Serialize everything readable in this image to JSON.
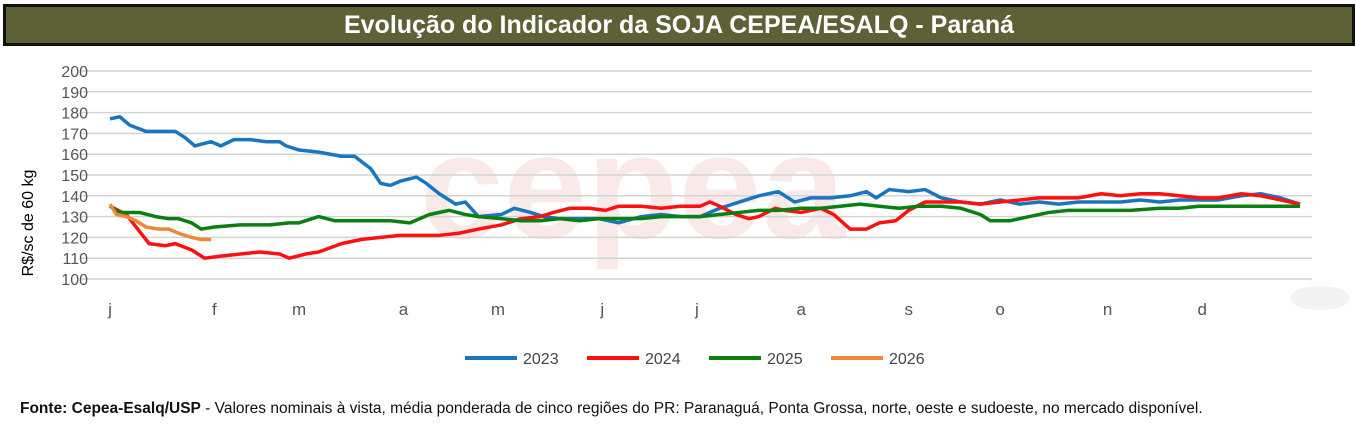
{
  "title": "Evolução do Indicador da SOJA CEPEA/ESALQ - Paraná",
  "footnote": {
    "source": "Fonte: Cepea-Esalq/USP",
    "text": " - Valores nominais à vista, média ponderada de cinco regiões do PR: Paranaguá, Ponta Grossa, norte, oeste e sudoeste, no mercado disponível."
  },
  "chart_data": {
    "type": "line",
    "title": "Evolução do Indicador da SOJA CEPEA/ESALQ - Paraná",
    "xlabel": "",
    "ylabel": "R$/sc de 60 kg",
    "ylim": [
      100,
      200
    ],
    "yticks": [
      200,
      190,
      180,
      170,
      160,
      150,
      140,
      130,
      120,
      110,
      100
    ],
    "xlim": [
      0,
      365
    ],
    "xticks": [
      {
        "day": 0,
        "label": "j"
      },
      {
        "day": 32,
        "label": "f"
      },
      {
        "day": 58,
        "label": "m"
      },
      {
        "day": 90,
        "label": "a"
      },
      {
        "day": 119,
        "label": "m"
      },
      {
        "day": 151,
        "label": "j"
      },
      {
        "day": 180,
        "label": "j"
      },
      {
        "day": 212,
        "label": "a"
      },
      {
        "day": 245,
        "label": "s"
      },
      {
        "day": 273,
        "label": "o"
      },
      {
        "day": 306,
        "label": "n"
      },
      {
        "day": 335,
        "label": "d"
      }
    ],
    "grid": true,
    "legend": "bottom",
    "series": [
      {
        "name": "2023",
        "color": "#1a75c0",
        "points": [
          [
            0,
            177
          ],
          [
            3,
            178
          ],
          [
            6,
            174
          ],
          [
            11,
            171
          ],
          [
            15,
            171
          ],
          [
            20,
            171
          ],
          [
            23,
            168
          ],
          [
            26,
            164
          ],
          [
            31,
            166
          ],
          [
            34,
            164
          ],
          [
            38,
            167
          ],
          [
            43,
            167
          ],
          [
            48,
            166
          ],
          [
            52,
            166
          ],
          [
            54,
            164
          ],
          [
            58,
            162
          ],
          [
            64,
            161
          ],
          [
            71,
            159
          ],
          [
            75,
            159
          ],
          [
            80,
            153
          ],
          [
            83,
            146
          ],
          [
            86,
            145
          ],
          [
            89,
            147
          ],
          [
            94,
            149
          ],
          [
            97,
            146
          ],
          [
            101,
            141
          ],
          [
            106,
            136
          ],
          [
            109,
            137
          ],
          [
            113,
            130
          ],
          [
            120,
            131
          ],
          [
            124,
            134
          ],
          [
            129,
            132
          ],
          [
            133,
            130
          ],
          [
            138,
            129
          ],
          [
            144,
            129
          ],
          [
            150,
            129
          ],
          [
            156,
            127
          ],
          [
            163,
            130
          ],
          [
            169,
            131
          ],
          [
            175,
            130
          ],
          [
            181,
            130
          ],
          [
            187,
            134
          ],
          [
            193,
            137
          ],
          [
            199,
            140
          ],
          [
            205,
            142
          ],
          [
            210,
            137
          ],
          [
            215,
            139
          ],
          [
            221,
            139
          ],
          [
            227,
            140
          ],
          [
            232,
            142
          ],
          [
            235,
            139
          ],
          [
            239,
            143
          ],
          [
            245,
            142
          ],
          [
            250,
            143
          ],
          [
            255,
            139
          ],
          [
            261,
            137
          ],
          [
            267,
            136
          ],
          [
            273,
            138
          ],
          [
            279,
            136
          ],
          [
            285,
            137
          ],
          [
            291,
            136
          ],
          [
            297,
            137
          ],
          [
            304,
            137
          ],
          [
            310,
            137
          ],
          [
            316,
            138
          ],
          [
            322,
            137
          ],
          [
            328,
            138
          ],
          [
            334,
            138
          ],
          [
            340,
            138
          ],
          [
            347,
            140
          ],
          [
            353,
            141
          ],
          [
            359,
            139
          ],
          [
            365,
            136
          ]
        ]
      },
      {
        "name": "2024",
        "color": "#ff1010",
        "points": [
          [
            0,
            135
          ],
          [
            5,
            131
          ],
          [
            9,
            123
          ],
          [
            12,
            117
          ],
          [
            17,
            116
          ],
          [
            20,
            117
          ],
          [
            25,
            114
          ],
          [
            29,
            110
          ],
          [
            34,
            111
          ],
          [
            40,
            112
          ],
          [
            46,
            113
          ],
          [
            52,
            112
          ],
          [
            55,
            110
          ],
          [
            60,
            112
          ],
          [
            64,
            113
          ],
          [
            71,
            117
          ],
          [
            77,
            119
          ],
          [
            83,
            120
          ],
          [
            89,
            121
          ],
          [
            95,
            121
          ],
          [
            101,
            121
          ],
          [
            107,
            122
          ],
          [
            113,
            124
          ],
          [
            120,
            126
          ],
          [
            126,
            129
          ],
          [
            132,
            130
          ],
          [
            136,
            132
          ],
          [
            141,
            134
          ],
          [
            147,
            134
          ],
          [
            152,
            133
          ],
          [
            156,
            135
          ],
          [
            163,
            135
          ],
          [
            169,
            134
          ],
          [
            175,
            135
          ],
          [
            181,
            135
          ],
          [
            184,
            137
          ],
          [
            187,
            135
          ],
          [
            192,
            131
          ],
          [
            196,
            129
          ],
          [
            199,
            130
          ],
          [
            204,
            134
          ],
          [
            207,
            133
          ],
          [
            212,
            132
          ],
          [
            218,
            134
          ],
          [
            222,
            131
          ],
          [
            227,
            124
          ],
          [
            232,
            124
          ],
          [
            236,
            127
          ],
          [
            241,
            128
          ],
          [
            245,
            133
          ],
          [
            250,
            137
          ],
          [
            255,
            137
          ],
          [
            261,
            137
          ],
          [
            267,
            136
          ],
          [
            273,
            137
          ],
          [
            279,
            138
          ],
          [
            285,
            139
          ],
          [
            291,
            139
          ],
          [
            297,
            139
          ],
          [
            304,
            141
          ],
          [
            310,
            140
          ],
          [
            316,
            141
          ],
          [
            322,
            141
          ],
          [
            328,
            140
          ],
          [
            334,
            139
          ],
          [
            340,
            139
          ],
          [
            347,
            141
          ],
          [
            353,
            140
          ],
          [
            359,
            138
          ],
          [
            365,
            136
          ]
        ]
      },
      {
        "name": "2025",
        "color": "#0a8010",
        "points": [
          [
            0,
            135
          ],
          [
            3,
            132
          ],
          [
            9,
            132
          ],
          [
            14,
            130
          ],
          [
            18,
            129
          ],
          [
            21,
            129
          ],
          [
            25,
            127
          ],
          [
            28,
            124
          ],
          [
            32,
            125
          ],
          [
            40,
            126
          ],
          [
            49,
            126
          ],
          [
            55,
            127
          ],
          [
            58,
            127
          ],
          [
            64,
            130
          ],
          [
            69,
            128
          ],
          [
            77,
            128
          ],
          [
            86,
            128
          ],
          [
            92,
            127
          ],
          [
            98,
            131
          ],
          [
            104,
            133
          ],
          [
            109,
            131
          ],
          [
            113,
            130
          ],
          [
            120,
            129
          ],
          [
            126,
            128
          ],
          [
            132,
            128
          ],
          [
            138,
            129
          ],
          [
            144,
            128
          ],
          [
            150,
            129
          ],
          [
            156,
            129
          ],
          [
            163,
            129
          ],
          [
            169,
            130
          ],
          [
            175,
            130
          ],
          [
            181,
            130
          ],
          [
            187,
            131
          ],
          [
            193,
            132
          ],
          [
            199,
            133
          ],
          [
            205,
            133
          ],
          [
            212,
            134
          ],
          [
            218,
            134
          ],
          [
            224,
            135
          ],
          [
            230,
            136
          ],
          [
            236,
            135
          ],
          [
            242,
            134
          ],
          [
            248,
            135
          ],
          [
            255,
            135
          ],
          [
            261,
            134
          ],
          [
            267,
            131
          ],
          [
            270,
            128
          ],
          [
            276,
            128
          ],
          [
            282,
            130
          ],
          [
            288,
            132
          ],
          [
            294,
            133
          ],
          [
            304,
            133
          ],
          [
            313,
            133
          ],
          [
            322,
            134
          ],
          [
            328,
            134
          ],
          [
            334,
            135
          ],
          [
            340,
            135
          ],
          [
            347,
            135
          ],
          [
            353,
            135
          ],
          [
            359,
            135
          ],
          [
            365,
            135
          ]
        ]
      },
      {
        "name": "2026",
        "color": "#ee8838",
        "points": [
          [
            0,
            136
          ],
          [
            2,
            131
          ],
          [
            5,
            130
          ],
          [
            8,
            128
          ],
          [
            11,
            125
          ],
          [
            15,
            124
          ],
          [
            18,
            124
          ],
          [
            21,
            122
          ],
          [
            25,
            120
          ],
          [
            28,
            119
          ],
          [
            31,
            119
          ]
        ]
      }
    ]
  }
}
